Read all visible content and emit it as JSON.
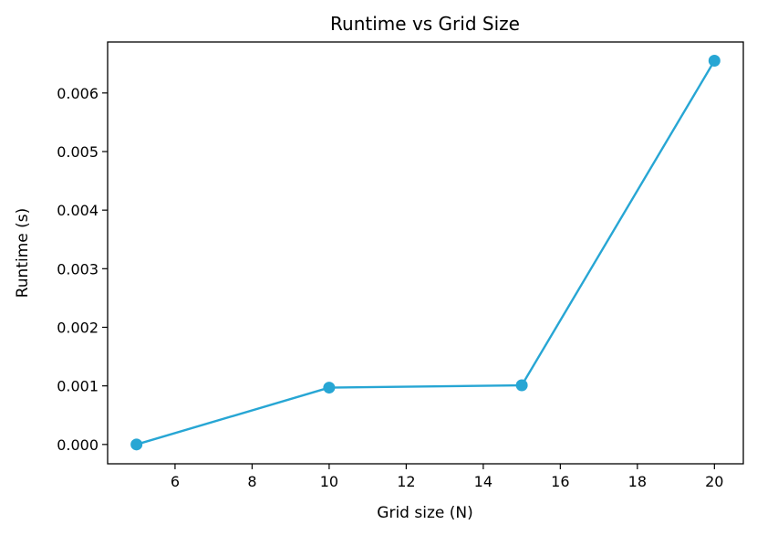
{
  "chart_data": {
    "type": "line",
    "title": "Runtime vs Grid Size",
    "xlabel": "Grid size (N)",
    "ylabel": "Runtime (s)",
    "xlim": [
      4.25,
      20.75
    ],
    "ylim": [
      -0.00033,
      0.00687
    ],
    "xticks": [
      6,
      8,
      10,
      12,
      14,
      16,
      18,
      20
    ],
    "yticks": [
      0.0,
      0.001,
      0.002,
      0.003,
      0.004,
      0.005,
      0.006
    ],
    "ytick_labels": [
      "0.000",
      "0.001",
      "0.002",
      "0.003",
      "0.004",
      "0.005",
      "0.006"
    ],
    "grid": false,
    "series": [
      {
        "x": [
          5,
          10,
          15,
          20
        ],
        "y": [
          0.0,
          0.00097,
          0.00101,
          0.00655
        ],
        "color": "#27a6d4",
        "marker": "circle"
      }
    ]
  }
}
